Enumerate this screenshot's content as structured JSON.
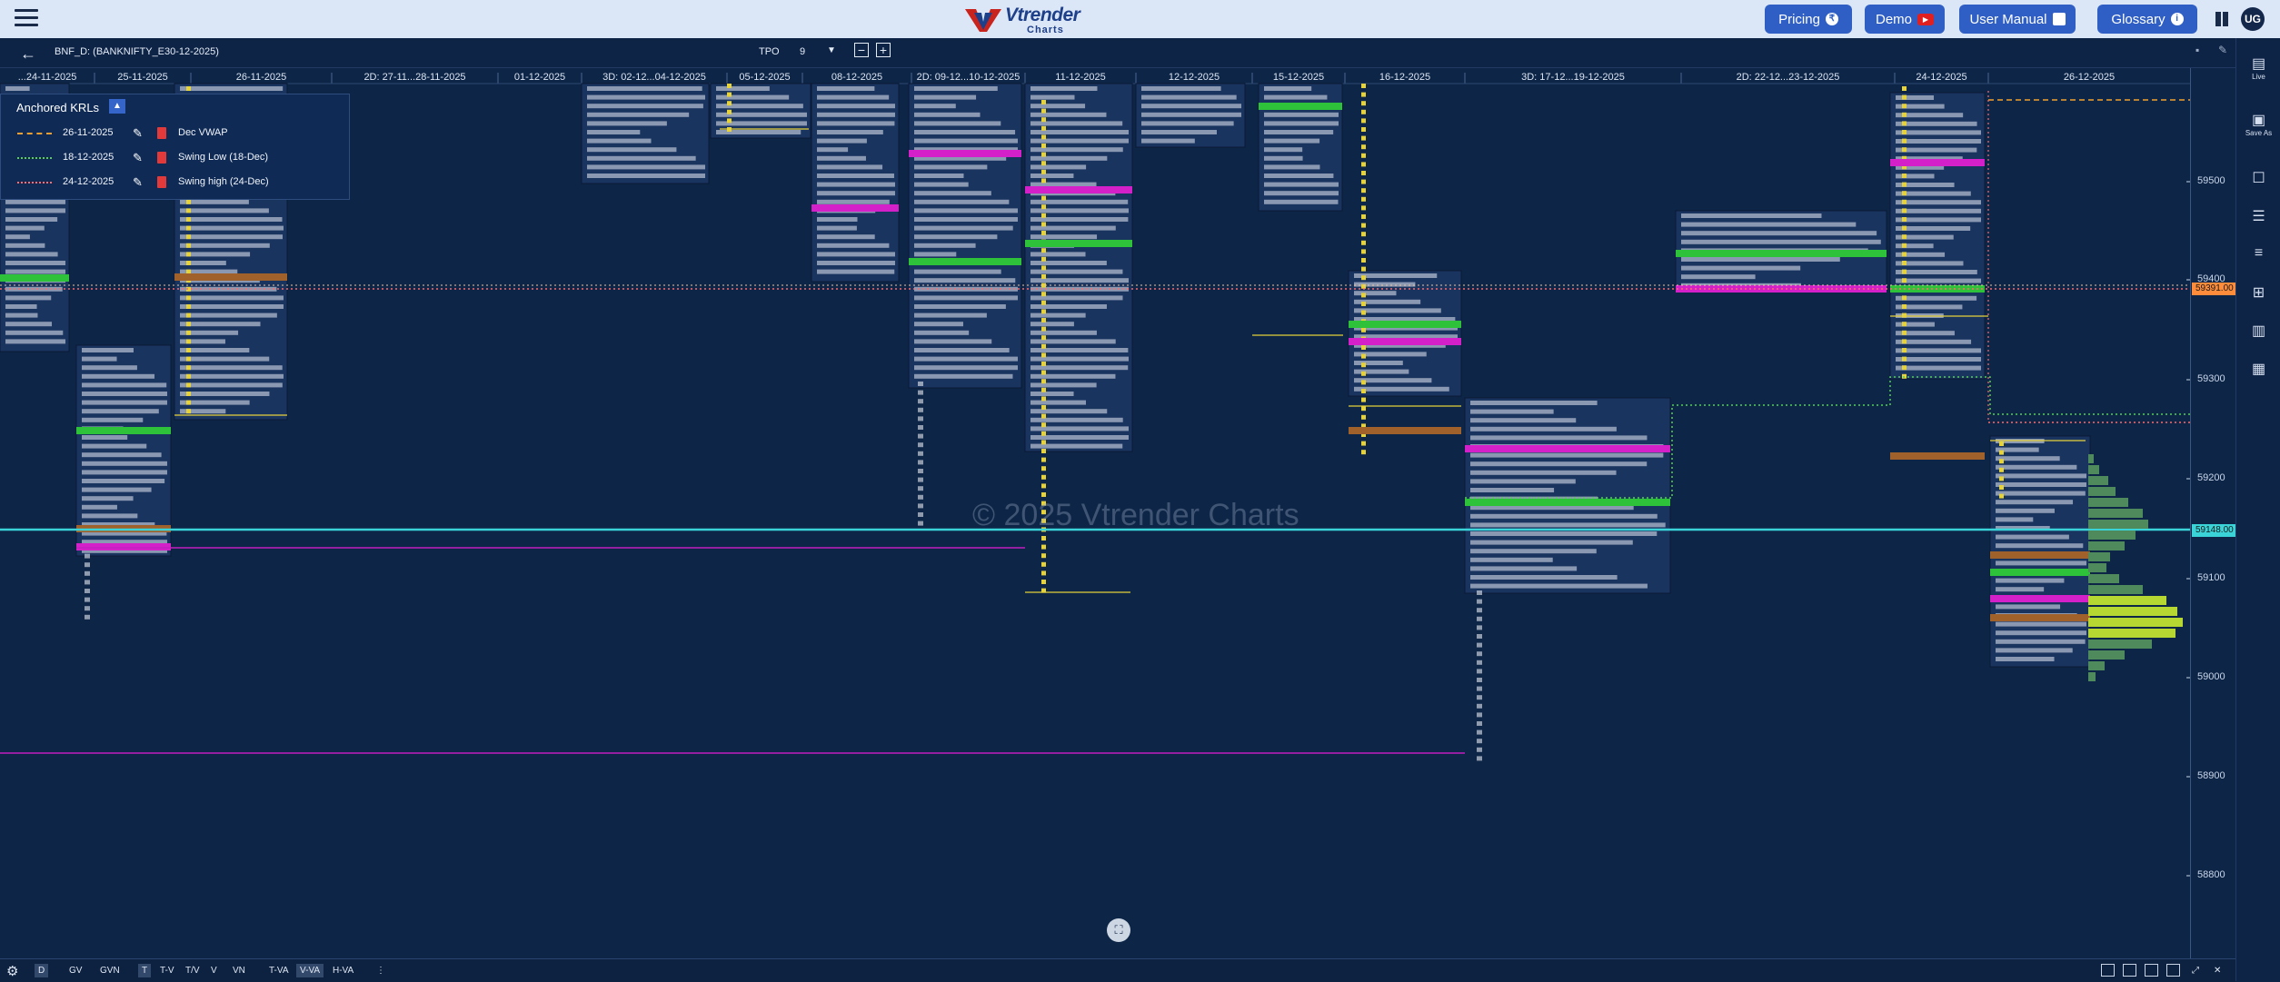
{
  "brand": {
    "name": "Vtrender",
    "sub": "Charts"
  },
  "topnav": {
    "pricing": "Pricing",
    "pricing_icon": "₹",
    "demo": "Demo",
    "user_manual": "User Manual",
    "glossary": "Glossary",
    "glossary_icon": "i",
    "avatar": "UG"
  },
  "toolbar": {
    "symbol": "BNF_D: (BANKNIFTY_E30-12-2025)",
    "tpo_label": "TPO",
    "tpo_value": "9",
    "minus": "−",
    "plus": "+"
  },
  "dates": [
    "...24-11-2025",
    "25-11-2025",
    "26-11-2025",
    "2D: 27-11...28-11-2025",
    "01-12-2025",
    "3D: 02-12...04-12-2025",
    "05-12-2025",
    "08-12-2025",
    "2D: 09-12...10-12-2025",
    "11-12-2025",
    "12-12-2025",
    "15-12-2025",
    "16-12-2025",
    "3D: 17-12...19-12-2025",
    "2D: 22-12...23-12-2025",
    "24-12-2025",
    "26-12-2025"
  ],
  "price_axis": [
    "59500",
    "59400",
    "59300",
    "59200",
    "59100",
    "59000",
    "58900",
    "58800"
  ],
  "price_highlights": {
    "upper": "59391.00",
    "lower": "59148.00"
  },
  "krl_panel": {
    "title": "Anchored KRLs",
    "rows": [
      {
        "date": "26-11-2025",
        "name": "Dec VWAP",
        "color": "#f0a030",
        "style": "dashed"
      },
      {
        "date": "18-12-2025",
        "name": "Swing Low (18-Dec)",
        "color": "#55d055",
        "style": "dotted"
      },
      {
        "date": "24-12-2025",
        "name": "Swing high (24-Dec)",
        "color": "#ff6a6a",
        "style": "dotted"
      }
    ]
  },
  "watermark": "© 2025 Vtrender Charts",
  "sidebar": {
    "live": "Live",
    "save_as": "Save As"
  },
  "bottom": {
    "d": "D",
    "gv": "GV",
    "gvn": "GVN",
    "t": "T",
    "tv": "T-V",
    "tslashv": "T/V",
    "v": "V",
    "vn": "VN",
    "tva": "T-VA",
    "vva": "V-VA",
    "hva": "H-VA"
  },
  "colors": {
    "background": "#0d2547",
    "profile_box": "#1a3460",
    "tpo_yellow": "#e6d23a",
    "tpo_white": "#e8ecf4",
    "poc_magenta": "#d320c8",
    "va_green": "#2ec23a",
    "ib_brown": "#a0622a",
    "cyan_line": "#39d3d8"
  }
}
